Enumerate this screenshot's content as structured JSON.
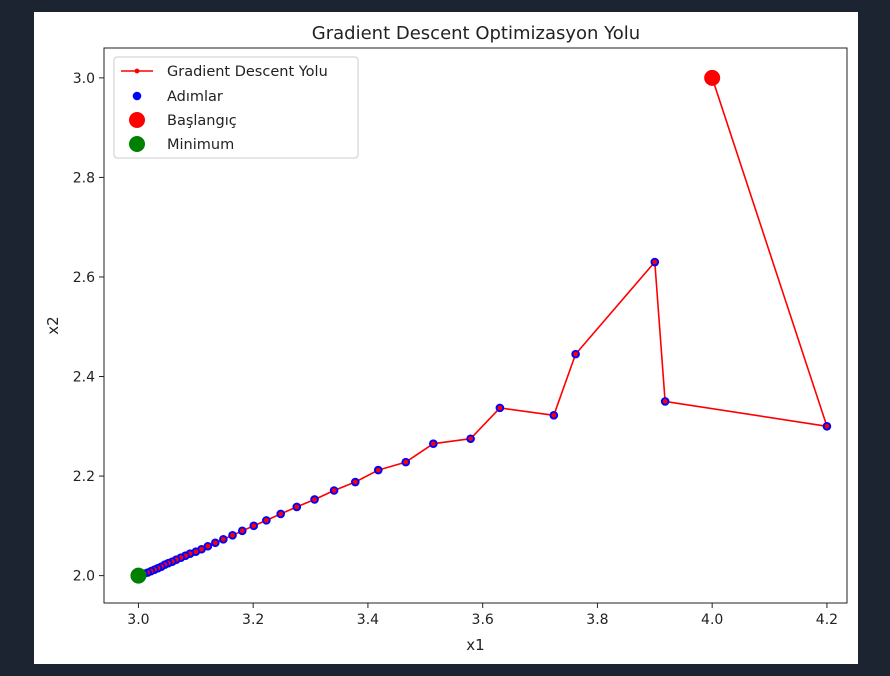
{
  "colors": {
    "background": "#1b2430",
    "figure": "#ffffff",
    "path_line": "#ff0000",
    "steps": "#0000ff",
    "start": "#ff0000",
    "minimum": "#008000"
  },
  "chart_data": {
    "type": "line",
    "title": "Gradient Descent Optimizasyon Yolu",
    "xlabel": "x1",
    "ylabel": "x2",
    "xlim": [
      2.94,
      4.235
    ],
    "ylim": [
      1.945,
      3.06
    ],
    "xticks": [
      "3.0",
      "3.2",
      "3.4",
      "3.6",
      "3.8",
      "4.0",
      "4.2"
    ],
    "yticks": [
      "2.0",
      "2.2",
      "2.4",
      "2.6",
      "2.8",
      "3.0"
    ],
    "grid": false,
    "legend_position": "top-left",
    "legend": [
      {
        "label": "Gradient Descent Yolu",
        "marker": "line",
        "color": "#ff0000"
      },
      {
        "label": "Adımlar",
        "marker": "dot",
        "color": "#0000ff"
      },
      {
        "label": "Başlangıç",
        "marker": "big-dot",
        "color": "#ff0000"
      },
      {
        "label": "Minimum",
        "marker": "big-dot",
        "color": "#008000"
      }
    ],
    "series": [
      {
        "name": "Gradient Descent Yolu",
        "x": [
          4.0,
          4.2,
          3.918,
          3.9,
          3.762,
          3.724,
          3.63,
          3.579,
          3.514,
          3.466,
          3.418,
          3.378,
          3.341,
          3.307,
          3.276,
          3.248,
          3.223,
          3.201,
          3.181,
          3.164,
          3.148,
          3.134,
          3.121,
          3.11,
          3.1,
          3.09,
          3.082,
          3.074,
          3.066,
          3.059,
          3.052,
          3.046,
          3.04,
          3.034,
          3.028,
          3.022,
          3.016,
          3.01,
          3.005,
          3.0
        ],
        "y": [
          3.0,
          2.3,
          2.35,
          2.63,
          2.445,
          2.322,
          2.337,
          2.275,
          2.265,
          2.228,
          2.212,
          2.188,
          2.171,
          2.153,
          2.138,
          2.124,
          2.111,
          2.1,
          2.09,
          2.081,
          2.073,
          2.066,
          2.059,
          2.053,
          2.048,
          2.044,
          2.04,
          2.036,
          2.032,
          2.028,
          2.025,
          2.022,
          2.018,
          2.015,
          2.012,
          2.009,
          2.006,
          2.004,
          2.002,
          2.0
        ]
      }
    ],
    "start": {
      "x": 4.0,
      "y": 3.0
    },
    "minimum": {
      "x": 3.0,
      "y": 2.0
    }
  }
}
